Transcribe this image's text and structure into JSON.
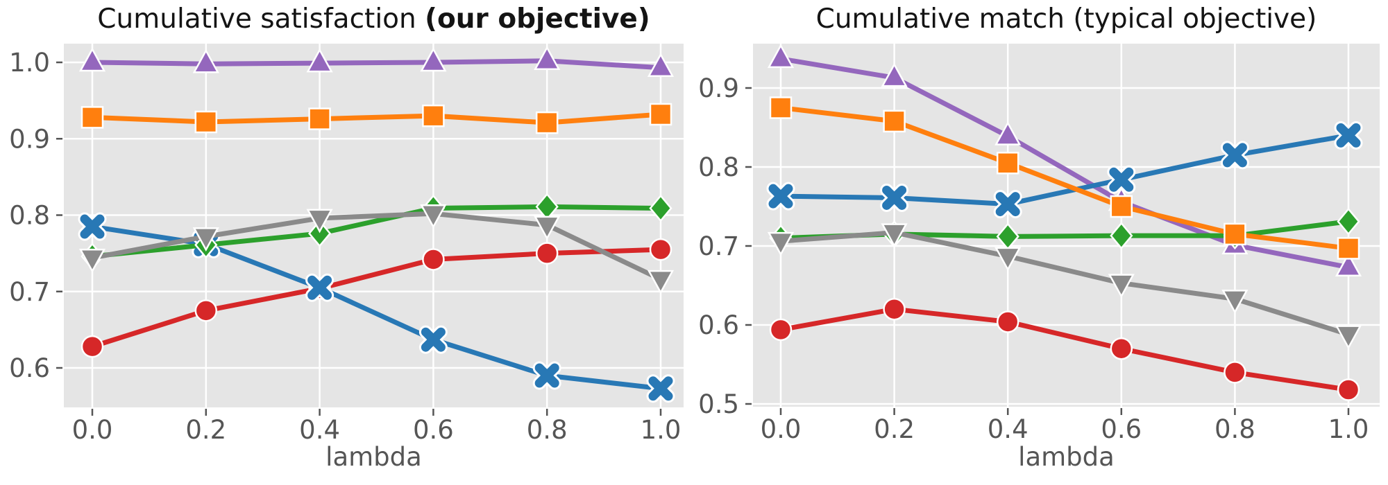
{
  "figure": {
    "plot_background": "#e5e5e5",
    "gridline_color": "#ffffff",
    "tick_label_color": "#555555",
    "title_color": "#141414"
  },
  "chart_data": [
    {
      "type": "line",
      "title_regular": "Cumulative satisfaction ",
      "title_bold": "(our objective)",
      "xlabel": "lambda",
      "x": [
        0.0,
        0.2,
        0.4,
        0.6,
        0.8,
        1.0
      ],
      "xtick_labels": [
        "0.0",
        "0.2",
        "0.4",
        "0.6",
        "0.8",
        "1.0"
      ],
      "ytick_labels": [
        "1.0",
        "0.9",
        "0.8",
        "0.7",
        "0.6"
      ],
      "yticks": [
        1.0,
        0.9,
        0.8,
        0.7,
        0.6
      ],
      "ylim": [
        0.549,
        1.026
      ],
      "grid": true,
      "legend": "none",
      "series": [
        {
          "name": "red-circle",
          "marker": "circle",
          "color": "#d62728",
          "values": [
            0.628,
            0.675,
            0.704,
            0.742,
            0.75,
            0.755
          ]
        },
        {
          "name": "purple-triangle-up",
          "marker": "triangle-up",
          "color": "#9467bd",
          "values": [
            1.0,
            0.998,
            0.999,
            1.0,
            1.002,
            0.993
          ]
        },
        {
          "name": "blue-x",
          "marker": "x",
          "color": "#2878b5",
          "values": [
            0.785,
            0.762,
            0.705,
            0.637,
            0.59,
            0.573
          ]
        },
        {
          "name": "green-diamond",
          "marker": "diamond",
          "color": "#2ca02c",
          "values": [
            0.746,
            0.761,
            0.776,
            0.809,
            0.811,
            0.809
          ]
        },
        {
          "name": "orange-square",
          "marker": "square",
          "color": "#ff7f0e",
          "values": [
            0.928,
            0.922,
            0.926,
            0.93,
            0.921,
            0.932
          ]
        },
        {
          "name": "gray-triangle-down",
          "marker": "triangle-down",
          "color": "#8a8a8a",
          "values": [
            0.744,
            0.772,
            0.796,
            0.802,
            0.787,
            0.716
          ]
        }
      ]
    },
    {
      "type": "line",
      "title_regular": "Cumulative match (typical objective)",
      "title_bold": "",
      "xlabel": "lambda",
      "x": [
        0.0,
        0.2,
        0.4,
        0.6,
        0.8,
        1.0
      ],
      "xtick_labels": [
        "0.0",
        "0.2",
        "0.4",
        "0.6",
        "0.8",
        "1.0"
      ],
      "ytick_labels": [
        "0.9",
        "0.8",
        "0.7",
        "0.6",
        "0.5"
      ],
      "yticks": [
        0.9,
        0.8,
        0.7,
        0.6,
        0.5
      ],
      "ylim": [
        0.497,
        0.956
      ],
      "grid": true,
      "legend": "none",
      "series": [
        {
          "name": "red-circle",
          "marker": "circle",
          "color": "#d62728",
          "values": [
            0.594,
            0.62,
            0.604,
            0.57,
            0.54,
            0.518
          ]
        },
        {
          "name": "purple-triangle-up",
          "marker": "triangle-up",
          "color": "#9467bd",
          "values": [
            0.937,
            0.913,
            0.839,
            0.756,
            0.701,
            0.673
          ]
        },
        {
          "name": "blue-x",
          "marker": "x",
          "color": "#2878b5",
          "values": [
            0.763,
            0.761,
            0.753,
            0.784,
            0.815,
            0.84
          ]
        },
        {
          "name": "green-diamond",
          "marker": "diamond",
          "color": "#2ca02c",
          "values": [
            0.71,
            0.715,
            0.712,
            0.713,
            0.713,
            0.731
          ]
        },
        {
          "name": "orange-square",
          "marker": "square",
          "color": "#ff7f0e",
          "values": [
            0.875,
            0.858,
            0.805,
            0.75,
            0.715,
            0.697
          ]
        },
        {
          "name": "gray-triangle-down",
          "marker": "triangle-down",
          "color": "#8a8a8a",
          "values": [
            0.706,
            0.717,
            0.687,
            0.653,
            0.633,
            0.588
          ]
        }
      ]
    }
  ]
}
